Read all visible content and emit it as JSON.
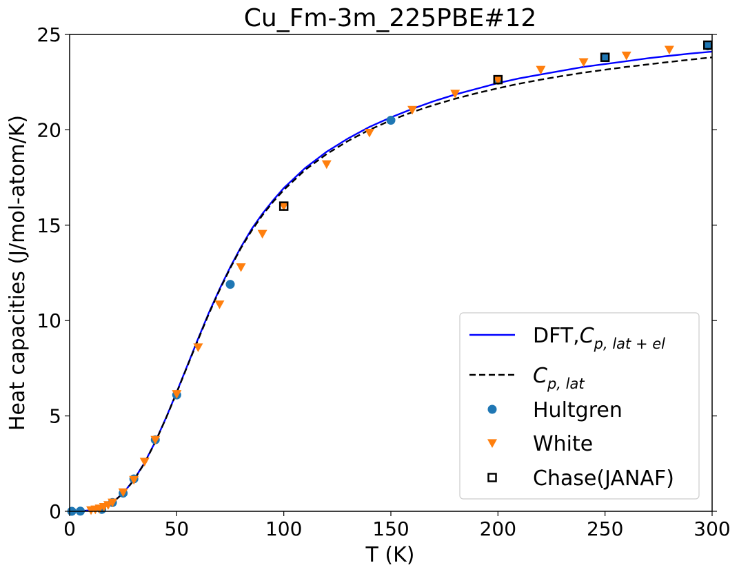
{
  "chart_data": {
    "type": "line",
    "title": "Cu_Fm-3m_225PBE#12",
    "xlabel": "T (K)",
    "ylabel": "Heat capacities (J/mol-atom/K)",
    "xlim": [
      0,
      300
    ],
    "ylim": [
      0,
      25
    ],
    "xticks": [
      "0",
      "50",
      "100",
      "150",
      "200",
      "250",
      "300"
    ],
    "yticks": [
      "0",
      "5",
      "10",
      "15",
      "20",
      "25"
    ],
    "grid": false,
    "legend_position": "lower-right",
    "series": [
      {
        "name": "DFT,C_{p,lat+el}",
        "legend_main": "DFT,",
        "legend_sym": "C",
        "legend_sub": "p, lat + el",
        "kind": "line",
        "style": "solid",
        "color": "#0000ff",
        "x": [
          0,
          5,
          10,
          15,
          20,
          25,
          30,
          35,
          40,
          45,
          50,
          55,
          60,
          65,
          70,
          75,
          80,
          85,
          90,
          95,
          100,
          110,
          120,
          130,
          140,
          150,
          160,
          170,
          180,
          190,
          200,
          210,
          220,
          230,
          240,
          250,
          260,
          270,
          280,
          290,
          300
        ],
        "y": [
          0,
          0.01,
          0.06,
          0.2,
          0.47,
          0.95,
          1.65,
          2.55,
          3.65,
          4.9,
          6.25,
          7.65,
          9.05,
          10.4,
          11.65,
          12.8,
          13.85,
          14.8,
          15.6,
          16.3,
          16.95,
          18.0,
          18.85,
          19.55,
          20.15,
          20.65,
          21.1,
          21.5,
          21.85,
          22.15,
          22.45,
          22.7,
          22.9,
          23.1,
          23.3,
          23.45,
          23.6,
          23.75,
          23.88,
          24.0,
          24.1
        ]
      },
      {
        "name": "C_{p,lat}",
        "legend_main": "",
        "legend_sym": "C",
        "legend_sub": "p, lat",
        "kind": "line",
        "style": "dashed",
        "color": "#000000",
        "x": [
          0,
          5,
          10,
          15,
          20,
          25,
          30,
          35,
          40,
          45,
          50,
          55,
          60,
          65,
          70,
          75,
          80,
          85,
          90,
          95,
          100,
          110,
          120,
          130,
          140,
          150,
          160,
          170,
          180,
          190,
          200,
          210,
          220,
          230,
          240,
          250,
          260,
          270,
          280,
          290,
          300
        ],
        "y": [
          0,
          0.01,
          0.05,
          0.19,
          0.46,
          0.94,
          1.63,
          2.53,
          3.63,
          4.88,
          6.22,
          7.62,
          9.0,
          10.35,
          11.6,
          12.75,
          13.8,
          14.72,
          15.52,
          16.22,
          16.85,
          17.9,
          18.73,
          19.42,
          20.0,
          20.5,
          20.93,
          21.3,
          21.63,
          21.92,
          22.18,
          22.42,
          22.63,
          22.82,
          23.0,
          23.15,
          23.3,
          23.43,
          23.56,
          23.68,
          23.8
        ]
      },
      {
        "name": "Hultgren",
        "kind": "marker",
        "marker": "circle",
        "color": "#1f77b4",
        "x": [
          1,
          5,
          15,
          20,
          25,
          30,
          40,
          50,
          75,
          150,
          200,
          250,
          298
        ],
        "y": [
          0.0,
          0.01,
          0.1,
          0.46,
          0.95,
          1.7,
          3.75,
          6.1,
          11.9,
          20.5,
          22.6,
          23.8,
          24.4
        ]
      },
      {
        "name": "White",
        "kind": "marker",
        "marker": "triangle-down",
        "color": "#ff7f0e",
        "x": [
          10,
          12,
          14,
          16,
          18,
          20,
          25,
          30,
          35,
          40,
          50,
          60,
          70,
          80,
          90,
          100,
          120,
          140,
          160,
          180,
          200,
          220,
          240,
          260,
          280
        ],
        "y": [
          0.06,
          0.1,
          0.15,
          0.23,
          0.33,
          0.46,
          1.0,
          1.65,
          2.6,
          3.75,
          6.15,
          8.6,
          10.85,
          12.8,
          14.55,
          16.0,
          18.2,
          19.85,
          21.05,
          21.9,
          22.6,
          23.15,
          23.55,
          23.9,
          24.2
        ]
      },
      {
        "name": "Chase(JANAF)",
        "kind": "marker",
        "marker": "square",
        "color": "#000000",
        "x": [
          100,
          200,
          250,
          298
        ],
        "y": [
          16.0,
          22.63,
          23.8,
          24.44
        ]
      }
    ]
  }
}
